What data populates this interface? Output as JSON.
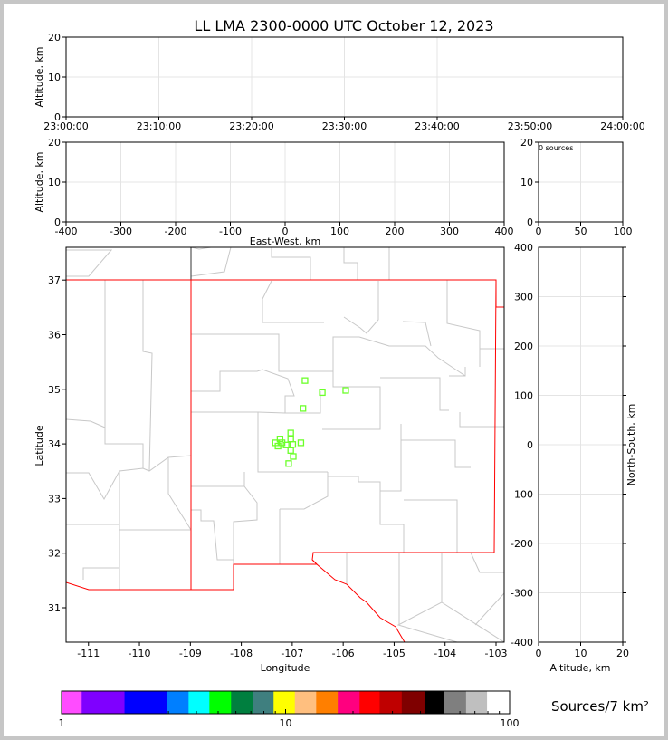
{
  "title": "LL LMA 2300-0000 UTC October 12, 2023",
  "chart_data": [
    {
      "panel": "altitude-vs-time",
      "type": "scatter",
      "ylabel": "Altitude, km",
      "ylim": [
        0,
        20
      ],
      "yticks": [
        "0",
        "10",
        "20"
      ],
      "xticks": [
        "23:00:00",
        "23:10:00",
        "23:20:00",
        "23:30:00",
        "23:40:00",
        "23:50:00",
        "24:00:00"
      ],
      "grid": true,
      "points": []
    },
    {
      "panel": "altitude-vs-east-west",
      "type": "scatter",
      "xlabel": "East-West, km",
      "ylabel": "Altitude, km",
      "xlim": [
        -400,
        400
      ],
      "ylim": [
        0,
        20
      ],
      "xticks": [
        "-400",
        "-300",
        "-200",
        "-100",
        "0",
        "100",
        "200",
        "300",
        "400"
      ],
      "yticks": [
        "0",
        "10",
        "20"
      ],
      "grid": true,
      "points": []
    },
    {
      "panel": "altitude-histogram",
      "type": "bar",
      "annotation": "0 sources",
      "xlim": [
        0,
        100
      ],
      "ylim": [
        0,
        20
      ],
      "xticks": [
        "0",
        "50",
        "100"
      ],
      "yticks": [
        "0",
        "10",
        "20"
      ],
      "grid": true,
      "values": []
    },
    {
      "panel": "plan-view-map",
      "type": "scatter",
      "xlabel": "Longitude",
      "ylabel": "Latitude",
      "xlim": [
        -111.44,
        -102.84
      ],
      "ylim": [
        30.37,
        37.6
      ],
      "xticks": [
        "-111",
        "-110",
        "-109",
        "-108",
        "-107",
        "-106",
        "-105",
        "-104",
        "-103"
      ],
      "yticks": [
        "31",
        "32",
        "33",
        "34",
        "35",
        "36",
        "37"
      ],
      "grid": false,
      "marker_color": "#6cff2a",
      "border_color": "#ff0000",
      "points": [
        {
          "lon": -106.75,
          "lat": 35.16
        },
        {
          "lon": -106.41,
          "lat": 34.94
        },
        {
          "lon": -105.95,
          "lat": 34.98
        },
        {
          "lon": -106.79,
          "lat": 34.65
        },
        {
          "lon": -107.03,
          "lat": 34.2
        },
        {
          "lon": -107.24,
          "lat": 34.09
        },
        {
          "lon": -107.03,
          "lat": 34.09
        },
        {
          "lon": -107.33,
          "lat": 34.02
        },
        {
          "lon": -107.2,
          "lat": 34.02
        },
        {
          "lon": -107.12,
          "lat": 33.98
        },
        {
          "lon": -107.28,
          "lat": 33.96
        },
        {
          "lon": -106.99,
          "lat": 33.99
        },
        {
          "lon": -106.83,
          "lat": 34.02
        },
        {
          "lon": -107.03,
          "lat": 33.88
        },
        {
          "lon": -106.98,
          "lat": 33.77
        },
        {
          "lon": -107.07,
          "lat": 33.64
        }
      ]
    },
    {
      "panel": "north-south-vs-altitude",
      "type": "scatter",
      "xlabel": "Altitude, km",
      "ylabel": "North-South, km",
      "xlim": [
        0,
        20
      ],
      "ylim": [
        -400,
        400
      ],
      "xticks": [
        "0",
        "10",
        "20"
      ],
      "yticks": [
        "-400",
        "-300",
        "-200",
        "-100",
        "0",
        "100",
        "200",
        "300",
        "400"
      ],
      "grid": true,
      "points": []
    },
    {
      "panel": "colorbar",
      "type": "heatmap",
      "label": "Sources/7 km²",
      "scale": "log",
      "range": [
        1,
        100
      ],
      "ticklabels": [
        "1",
        "10",
        "100"
      ],
      "bounds": [
        1,
        1.23,
        1.91,
        2.96,
        3.69,
        4.57,
        5.71,
        7.14,
        8.84,
        11.0,
        13.7,
        17.1,
        21.4,
        26.3,
        33.0,
        41.7,
        51.1,
        63.9,
        79.3,
        100
      ],
      "colors": [
        "#ff4cff",
        "#7f00ff",
        "#0000ff",
        "#007fff",
        "#00ffff",
        "#00ff00",
        "#007f3f",
        "#3f7f7f",
        "#ffff00",
        "#ffbf7f",
        "#ff7f00",
        "#ff007f",
        "#ff0000",
        "#bf0000",
        "#7f0000",
        "#000000",
        "#7f7f7f",
        "#bfbfbf",
        "#ffffff"
      ]
    }
  ]
}
